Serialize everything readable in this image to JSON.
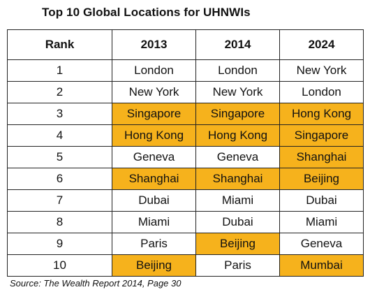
{
  "title": "Top 10 Global Locations for UHNWIs",
  "table": {
    "headers": [
      "Rank",
      "2013",
      "2014",
      "2024"
    ],
    "rows": [
      {
        "rank": "1",
        "cells": [
          {
            "text": "London",
            "highlight": false
          },
          {
            "text": "London",
            "highlight": false
          },
          {
            "text": "New York",
            "highlight": false
          }
        ]
      },
      {
        "rank": "2",
        "cells": [
          {
            "text": "New York",
            "highlight": false
          },
          {
            "text": "New York",
            "highlight": false
          },
          {
            "text": "London",
            "highlight": false
          }
        ]
      },
      {
        "rank": "3",
        "cells": [
          {
            "text": "Singapore",
            "highlight": true
          },
          {
            "text": "Singapore",
            "highlight": true
          },
          {
            "text": "Hong Kong",
            "highlight": true
          }
        ]
      },
      {
        "rank": "4",
        "cells": [
          {
            "text": "Hong Kong",
            "highlight": true
          },
          {
            "text": "Hong Kong",
            "highlight": true
          },
          {
            "text": "Singapore",
            "highlight": true
          }
        ]
      },
      {
        "rank": "5",
        "cells": [
          {
            "text": "Geneva",
            "highlight": false
          },
          {
            "text": "Geneva",
            "highlight": false
          },
          {
            "text": "Shanghai",
            "highlight": true
          }
        ]
      },
      {
        "rank": "6",
        "cells": [
          {
            "text": "Shanghai",
            "highlight": true
          },
          {
            "text": "Shanghai",
            "highlight": true
          },
          {
            "text": "Beijing",
            "highlight": true
          }
        ]
      },
      {
        "rank": "7",
        "cells": [
          {
            "text": "Dubai",
            "highlight": false
          },
          {
            "text": "Miami",
            "highlight": false
          },
          {
            "text": "Dubai",
            "highlight": false
          }
        ]
      },
      {
        "rank": "8",
        "cells": [
          {
            "text": "Miami",
            "highlight": false
          },
          {
            "text": "Dubai",
            "highlight": false
          },
          {
            "text": "Miami",
            "highlight": false
          }
        ]
      },
      {
        "rank": "9",
        "cells": [
          {
            "text": "Paris",
            "highlight": false
          },
          {
            "text": "Beijing",
            "highlight": true
          },
          {
            "text": "Geneva",
            "highlight": false
          }
        ]
      },
      {
        "rank": "10",
        "cells": [
          {
            "text": "Beijing",
            "highlight": true
          },
          {
            "text": "Paris",
            "highlight": false
          },
          {
            "text": "Mumbai",
            "highlight": true
          }
        ]
      }
    ]
  },
  "source": "Source: The Wealth Report 2014, Page 30",
  "colors": {
    "highlight": "#f6b21c",
    "border": "#222222",
    "text": "#111111"
  }
}
